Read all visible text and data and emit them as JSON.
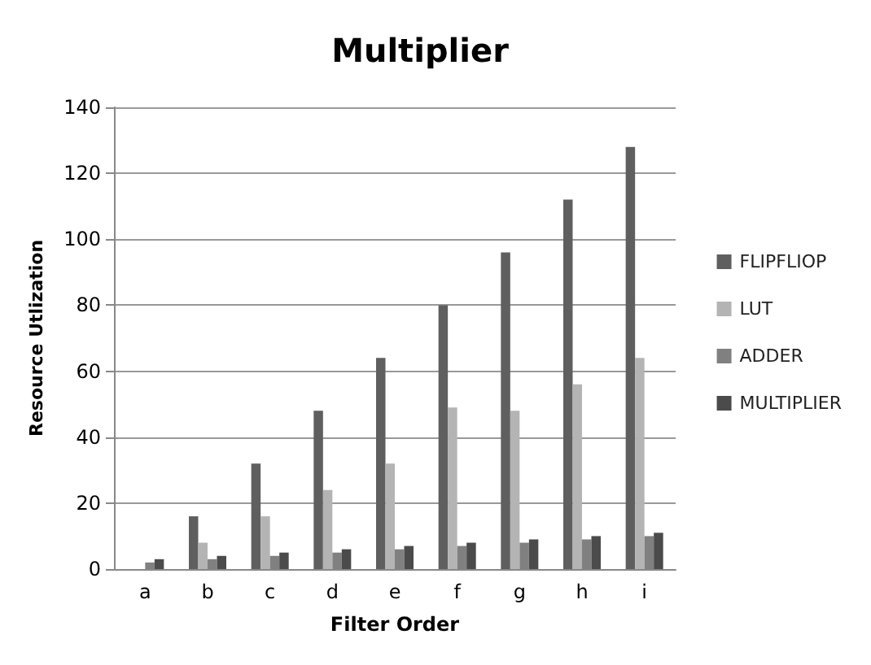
{
  "chart_data": {
    "type": "bar",
    "title": "Multiplier",
    "xlabel": "Filter Order",
    "ylabel": "Resource Utlization",
    "categories": [
      "a",
      "b",
      "c",
      "d",
      "e",
      "f",
      "g",
      "h",
      "i"
    ],
    "series": [
      {
        "name": "FLIPFLIOP",
        "color": "#5f5f5f",
        "values": [
          0,
          16,
          32,
          48,
          64,
          80,
          96,
          112,
          128
        ]
      },
      {
        "name": "LUT",
        "color": "#b4b4b4",
        "values": [
          0,
          8,
          16,
          24,
          32,
          49,
          48,
          56,
          64
        ]
      },
      {
        "name": "ADDER",
        "color": "#808080",
        "values": [
          2,
          3,
          4,
          5,
          6,
          7,
          8,
          9,
          10
        ]
      },
      {
        "name": "MULTIPLIER",
        "color": "#4b4b4b",
        "values": [
          3,
          4,
          5,
          6,
          7,
          8,
          9,
          10,
          11
        ]
      }
    ],
    "ylim": [
      0,
      140
    ],
    "yticks": [
      0,
      20,
      40,
      60,
      80,
      100,
      120,
      140
    ],
    "grid": "y",
    "legend": "right"
  }
}
